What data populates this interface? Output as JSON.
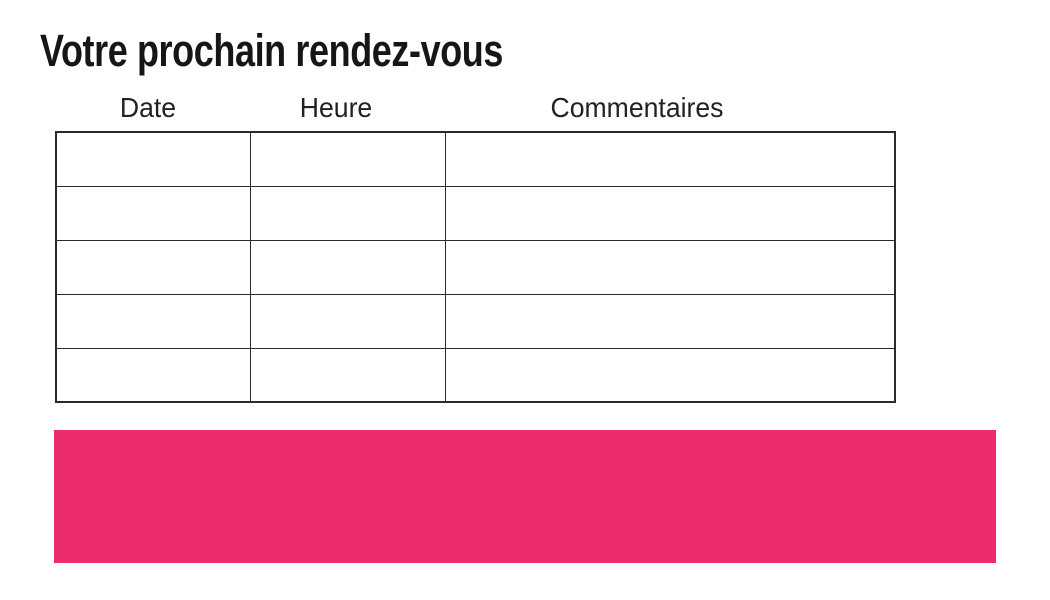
{
  "page": {
    "title": "Votre prochain rendez-vous"
  },
  "appointments_table": {
    "columns": [
      {
        "id": "date",
        "label": "Date"
      },
      {
        "id": "heure",
        "label": "Heure"
      },
      {
        "id": "commentaires",
        "label": "Commentaires"
      }
    ],
    "row_count": 5,
    "rows": [
      [
        "",
        "",
        ""
      ],
      [
        "",
        "",
        ""
      ],
      [
        "",
        "",
        ""
      ],
      [
        "",
        "",
        ""
      ],
      [
        "",
        "",
        ""
      ]
    ]
  },
  "banner": {
    "text": ""
  },
  "colors": {
    "accent_pink": "#ED2D6B",
    "table_border": "#2b2b2b",
    "text": "#161616"
  }
}
